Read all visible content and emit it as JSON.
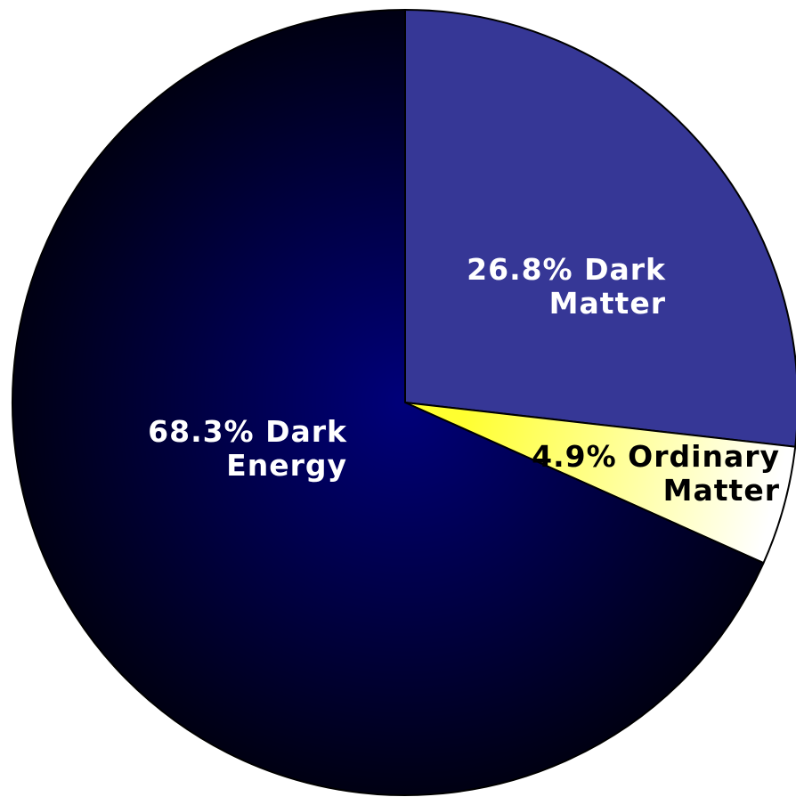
{
  "chart_data": {
    "type": "pie",
    "title": "",
    "start_angle": "12 o'clock",
    "direction": "clockwise",
    "slices": [
      {
        "name": "Dark Matter",
        "value": 26.8,
        "label_lines": [
          "26.8% Dark",
          "Matter"
        ],
        "color_light": "#363796",
        "color_dark": "#363796",
        "label_color": "#ffffff"
      },
      {
        "name": "Ordinary Matter",
        "value": 4.9,
        "label_lines": [
          "4.9% Ordinary",
          "Matter"
        ],
        "color_light": "#ffff30",
        "color_dark": "#ffffff",
        "label_color": "#000000"
      },
      {
        "name": "Dark Energy",
        "value": 68.3,
        "label_lines": [
          "68.3% Dark",
          "Energy"
        ],
        "color_light": "#00007a",
        "color_dark": "#000012",
        "label_color": "#ffffff"
      }
    ]
  }
}
